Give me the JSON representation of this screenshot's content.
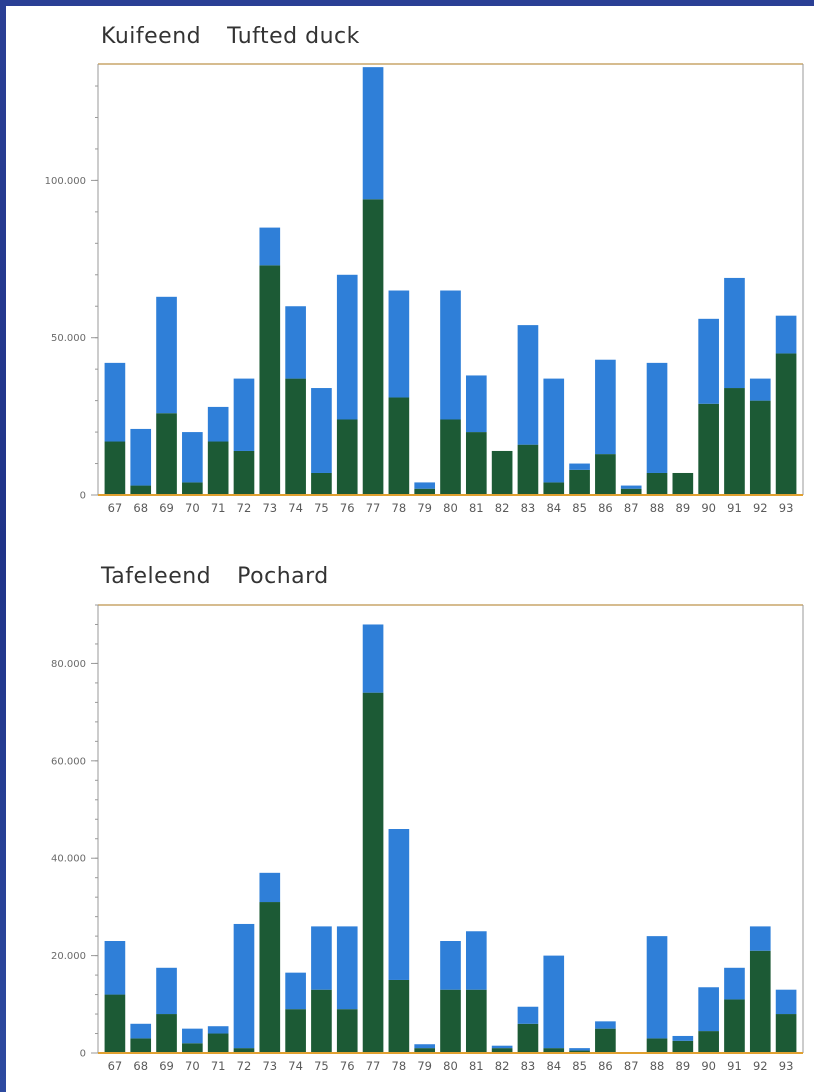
{
  "colors": {
    "green": "#1c5a35",
    "blue": "#2f7fd8",
    "frame": "#c9a66a",
    "axis": "#999999",
    "baseline": "#e0a030"
  },
  "chart_data": [
    {
      "type": "bar",
      "stacked": true,
      "title_nl": "Kuifeend",
      "title_en": "Tufted duck",
      "categories": [
        "67",
        "68",
        "69",
        "70",
        "71",
        "72",
        "73",
        "74",
        "75",
        "76",
        "77",
        "78",
        "79",
        "80",
        "81",
        "82",
        "83",
        "84",
        "85",
        "86",
        "87",
        "88",
        "89",
        "90",
        "91",
        "92",
        "93"
      ],
      "yticks": [
        "0",
        "50.000",
        "100.000"
      ],
      "ylim": [
        0,
        137000
      ],
      "tick_values": [
        0,
        50000,
        100000
      ],
      "series": [
        {
          "values": [
            17000,
            3000,
            26000,
            4000,
            17000,
            14000,
            73000,
            37000,
            7000,
            24000,
            94000,
            31000,
            2000,
            24000,
            20000,
            14000,
            16000,
            4000,
            8000,
            13000,
            2000,
            7000,
            7000,
            29000,
            34000,
            30000,
            45000
          ]
        },
        {
          "values": [
            25000,
            18000,
            37000,
            16000,
            11000,
            23000,
            12000,
            23000,
            27000,
            46000,
            42000,
            34000,
            2000,
            41000,
            18000,
            0,
            38000,
            33000,
            2000,
            30000,
            1000,
            35000,
            0,
            27000,
            35000,
            7000,
            12000
          ]
        }
      ]
    },
    {
      "type": "bar",
      "stacked": true,
      "title_nl": "Tafeleend",
      "title_en": "Pochard",
      "categories": [
        "67",
        "68",
        "69",
        "70",
        "71",
        "72",
        "73",
        "74",
        "75",
        "76",
        "77",
        "78",
        "79",
        "80",
        "81",
        "82",
        "83",
        "84",
        "85",
        "86",
        "87",
        "88",
        "89",
        "90",
        "91",
        "92",
        "93"
      ],
      "yticks": [
        "0",
        "20.000",
        "40.000",
        "60.000",
        "80.000"
      ],
      "ylim": [
        0,
        92000
      ],
      "tick_values": [
        0,
        20000,
        40000,
        60000,
        80000
      ],
      "series": [
        {
          "values": [
            12000,
            3000,
            8000,
            2000,
            4000,
            1000,
            31000,
            9000,
            13000,
            9000,
            74000,
            15000,
            1000,
            13000,
            13000,
            1000,
            6000,
            1000,
            500,
            5000,
            0,
            3000,
            2500,
            4500,
            11000,
            21000,
            8000
          ]
        },
        {
          "values": [
            11000,
            3000,
            9500,
            3000,
            1500,
            25500,
            6000,
            7500,
            13000,
            17000,
            14000,
            31000,
            800,
            10000,
            12000,
            500,
            3500,
            19000,
            500,
            1500,
            0,
            21000,
            1000,
            9000,
            6500,
            5000,
            5000
          ]
        }
      ]
    }
  ]
}
